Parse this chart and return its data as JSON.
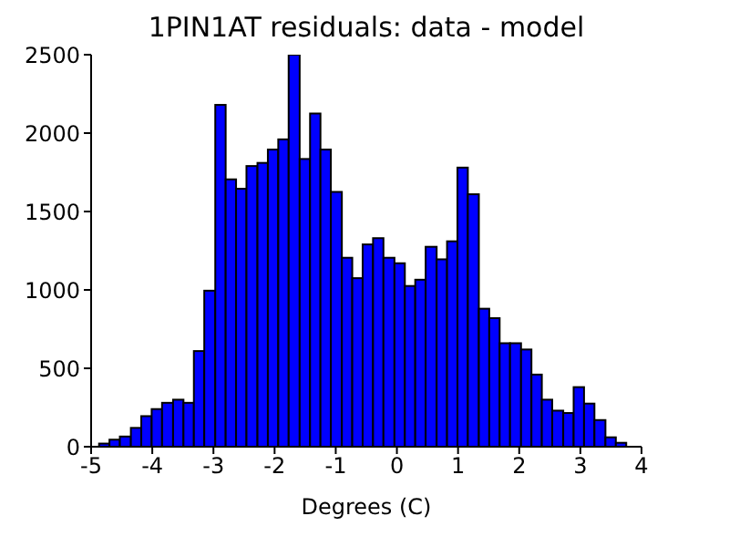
{
  "chart_data": {
    "type": "histogram",
    "title": "1PIN1AT residuals: data - model",
    "xlabel": "Degrees (C)",
    "color": "#0000ff",
    "bins": [
      -4.87,
      -4.7,
      -4.53,
      -4.35,
      -4.18,
      -4.01,
      -3.84,
      -3.66,
      -3.49,
      -3.32,
      -3.15,
      -2.97,
      -2.8,
      -2.63,
      -2.46,
      -2.28,
      -2.11,
      -1.94,
      -1.77,
      -1.59,
      -1.42,
      -1.25,
      -1.08,
      -0.9,
      -0.73,
      -0.56,
      -0.39,
      -0.22,
      -0.04,
      0.13,
      0.3,
      0.47,
      0.65,
      0.82,
      0.99,
      1.16,
      1.34,
      1.51,
      1.68,
      1.85,
      2.03,
      2.2,
      2.37,
      2.54,
      2.72,
      2.89,
      3.06,
      3.23,
      3.41,
      3.58,
      3.75
    ],
    "values": [
      20,
      45,
      65,
      120,
      195,
      240,
      280,
      300,
      280,
      610,
      995,
      2180,
      1705,
      1645,
      1790,
      1810,
      1895,
      1960,
      2500,
      1835,
      2125,
      1895,
      1625,
      1205,
      1075,
      1290,
      1330,
      1205,
      1170,
      1025,
      1065,
      1275,
      1195,
      1310,
      1780,
      1610,
      880,
      820,
      660,
      660,
      620,
      460,
      300,
      230,
      215,
      380,
      275,
      170,
      60,
      25
    ],
    "xlim": [
      -5,
      4
    ],
    "xticks": [
      -5,
      -4,
      -3,
      -2,
      -1,
      0,
      1,
      2,
      3,
      4
    ],
    "ylim": [
      0,
      2500
    ],
    "yticks": [
      0,
      500,
      1000,
      1500,
      2000,
      2500
    ],
    "grid": false
  }
}
